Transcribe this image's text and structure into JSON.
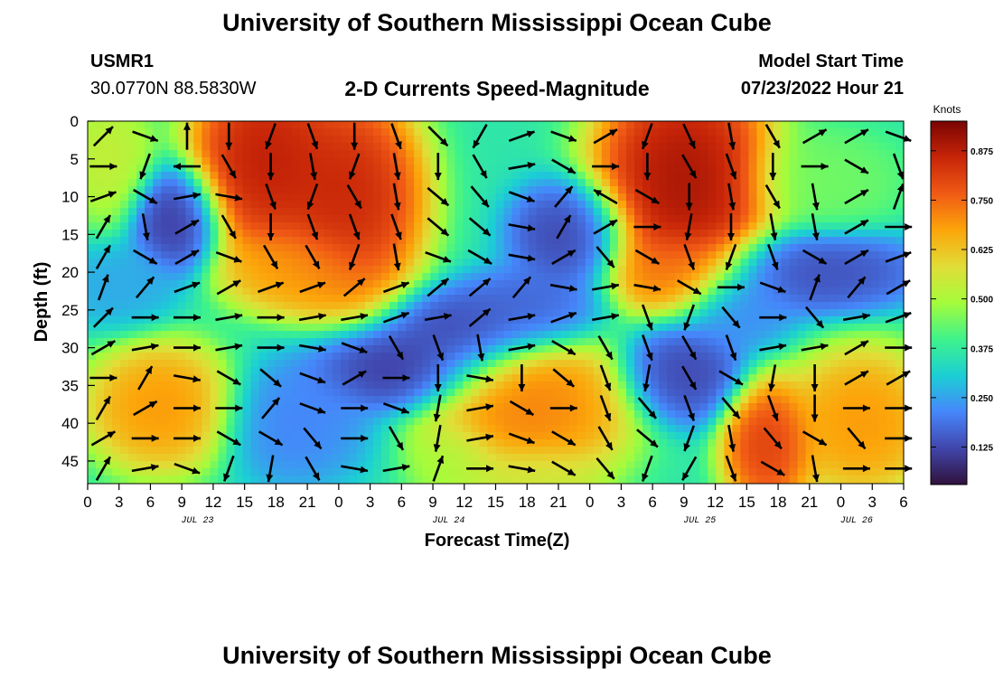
{
  "page_title": "University of Southern Mississippi Ocean Cube",
  "footer_title": "University of Southern Mississippi Ocean Cube",
  "station": {
    "id": "USMR1",
    "coords": "30.0770N  88.5830W"
  },
  "model": {
    "label": "Model Start Time",
    "value": "07/23/2022 Hour 21"
  },
  "chart_data": {
    "type": "heatmap",
    "title": "2-D Currents Speed-Magnitude",
    "xlabel": "Forecast Time(Z)",
    "ylabel": "Depth (ft)",
    "x_tick_labels": [
      "0",
      "3",
      "6",
      "9",
      "12",
      "15",
      "18",
      "21",
      "0",
      "3",
      "6",
      "9",
      "12",
      "15",
      "18",
      "21",
      "0",
      "3",
      "6",
      "9",
      "12",
      "15",
      "18",
      "21",
      "0",
      "3",
      "6"
    ],
    "x_hours_from_jul23_00": [
      0,
      78
    ],
    "date_labels": [
      {
        "label": "JUL 23",
        "hour": 9
      },
      {
        "label": "JUL 24",
        "hour": 33
      },
      {
        "label": "JUL 25",
        "hour": 57
      },
      {
        "label": "JUL 26",
        "hour": 72
      }
    ],
    "y_ticks": [
      0,
      5,
      10,
      15,
      20,
      25,
      30,
      35,
      40,
      45
    ],
    "ylim": [
      0,
      48
    ],
    "y_inverted": true,
    "colorbar": {
      "unit": "Knots",
      "ticks": [
        "0.125",
        "0.250",
        "0.375",
        "0.500",
        "0.625",
        "0.750",
        "0.875"
      ],
      "range": [
        0.03,
        0.95
      ]
    },
    "speed_features": [
      {
        "hour": 8.5,
        "depth": 13,
        "speed": 0.08,
        "spread_h": 3,
        "spread_d": 5
      },
      {
        "hour": 17,
        "depth": 5,
        "speed": 0.92,
        "spread_h": 5,
        "spread_d": 9
      },
      {
        "hour": 25,
        "depth": 10,
        "speed": 0.9,
        "spread_h": 5,
        "spread_d": 10
      },
      {
        "hour": 20,
        "depth": 20,
        "speed": 0.7,
        "spread_h": 5,
        "spread_d": 4
      },
      {
        "hour": 57,
        "depth": 8,
        "speed": 0.95,
        "spread_h": 6,
        "spread_d": 11
      },
      {
        "hour": 56,
        "depth": 20,
        "speed": 0.72,
        "spread_h": 4,
        "spread_d": 4
      },
      {
        "hour": 7,
        "depth": 38,
        "speed": 0.72,
        "spread_h": 5,
        "spread_d": 6
      },
      {
        "hour": 42,
        "depth": 38,
        "speed": 0.75,
        "spread_h": 7,
        "spread_d": 7
      },
      {
        "hour": 42,
        "depth": 47,
        "speed": 0.55,
        "spread_h": 5,
        "spread_d": 3
      },
      {
        "hour": 65,
        "depth": 43,
        "speed": 0.85,
        "spread_h": 3,
        "spread_d": 6
      },
      {
        "hour": 74,
        "depth": 40,
        "speed": 0.72,
        "spread_h": 5,
        "spread_d": 7
      },
      {
        "hour": 30,
        "depth": 33,
        "speed": 0.08,
        "spread_h": 6,
        "spread_d": 4
      },
      {
        "hour": 36,
        "depth": 28,
        "speed": 0.1,
        "spread_h": 5,
        "spread_d": 4
      },
      {
        "hour": 42,
        "depth": 25,
        "speed": 0.15,
        "spread_h": 5,
        "spread_d": 4
      },
      {
        "hour": 46,
        "depth": 15,
        "speed": 0.1,
        "spread_h": 4,
        "spread_d": 5
      },
      {
        "hour": 57,
        "depth": 33,
        "speed": 0.1,
        "spread_h": 4,
        "spread_d": 5
      },
      {
        "hour": 70,
        "depth": 20,
        "speed": 0.12,
        "spread_h": 7,
        "spread_d": 4
      },
      {
        "hour": 62,
        "depth": 25,
        "speed": 0.2,
        "spread_h": 4,
        "spread_d": 4
      },
      {
        "hour": 3,
        "depth": 22,
        "speed": 0.25,
        "spread_h": 4,
        "spread_d": 4
      },
      {
        "hour": 20,
        "depth": 40,
        "speed": 0.2,
        "spread_h": 5,
        "spread_d": 6
      },
      {
        "hour": 2,
        "depth": 5,
        "speed": 0.55,
        "spread_h": 3,
        "spread_d": 6
      },
      {
        "hour": 35,
        "depth": 45,
        "speed": 0.5,
        "spread_h": 3,
        "spread_d": 4
      },
      {
        "hour": 71,
        "depth": 8,
        "speed": 0.45,
        "spread_h": 5,
        "spread_d": 5
      }
    ],
    "vectors": {
      "hours": [
        0,
        4,
        8,
        12,
        16,
        20,
        24,
        28,
        32,
        36,
        40,
        44,
        48,
        52,
        56,
        60,
        64,
        68,
        72,
        76
      ],
      "depths": [
        2,
        6,
        10,
        14,
        18,
        22,
        26,
        30,
        34,
        38,
        42,
        46
      ],
      "dirs_deg": [
        [
          45,
          110,
          0,
          180,
          200,
          160,
          180,
          160,
          135,
          210,
          70,
          110,
          60,
          200,
          155,
          170,
          150,
          60,
          60,
          110
        ],
        [
          90,
          200,
          270,
          150,
          180,
          170,
          200,
          170,
          180,
          150,
          80,
          120,
          90,
          180,
          150,
          160,
          180,
          90,
          120,
          160
        ],
        [
          70,
          120,
          80,
          100,
          160,
          200,
          150,
          170,
          130,
          140,
          110,
          40,
          300,
          120,
          180,
          170,
          150,
          170,
          60,
          20
        ],
        [
          30,
          170,
          60,
          150,
          180,
          160,
          160,
          160,
          130,
          130,
          100,
          30,
          60,
          90,
          190,
          180,
          170,
          170,
          60,
          90
        ],
        [
          30,
          120,
          60,
          110,
          150,
          150,
          200,
          170,
          110,
          120,
          100,
          60,
          140,
          120,
          160,
          200,
          160,
          120,
          60,
          70
        ],
        [
          20,
          40,
          70,
          60,
          70,
          70,
          50,
          70,
          50,
          50,
          40,
          100,
          80,
          100,
          120,
          90,
          110,
          20,
          40,
          60
        ],
        [
          45,
          90,
          90,
          80,
          90,
          80,
          80,
          70,
          80,
          50,
          80,
          70,
          80,
          160,
          200,
          140,
          90,
          140,
          80,
          70
        ],
        [
          60,
          80,
          90,
          80,
          90,
          100,
          110,
          150,
          160,
          170,
          80,
          120,
          150,
          160,
          150,
          160,
          80,
          80,
          60,
          90
        ],
        [
          90,
          30,
          100,
          120,
          130,
          110,
          60,
          90,
          180,
          100,
          180,
          130,
          160,
          190,
          150,
          120,
          190,
          180,
          60,
          60
        ],
        [
          30,
          60,
          90,
          90,
          40,
          110,
          90,
          110,
          190,
          80,
          120,
          90,
          160,
          140,
          160,
          140,
          160,
          180,
          90,
          90
        ],
        [
          60,
          90,
          90,
          120,
          120,
          140,
          90,
          150,
          190,
          80,
          110,
          120,
          150,
          130,
          200,
          170,
          140,
          120,
          140,
          90
        ],
        [
          30,
          80,
          110,
          200,
          190,
          150,
          100,
          80,
          20,
          90,
          100,
          120,
          140,
          200,
          210,
          160,
          120,
          170,
          90,
          90
        ]
      ]
    }
  }
}
